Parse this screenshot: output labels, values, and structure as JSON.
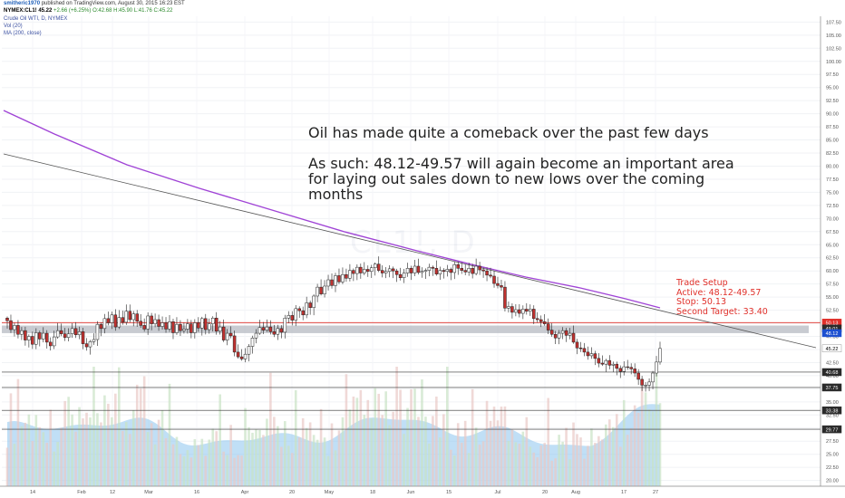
{
  "header": {
    "user": "smitheric1970",
    "published": "published on TradingView.com, August 30, 2015 16:23 EST",
    "symbol": "NYMEX:CL1!",
    "last": "45.22",
    "change": "+2.66 (+6.25%)",
    "o": "O:42.68",
    "h": "H:45.90",
    "l": "L:41.76",
    "c": "C:45.22",
    "indicator_main": "Crude Oil WTI, D, NYMEX",
    "indicator_vol": "Vol (20)",
    "indicator_ma": "MA (200, close)"
  },
  "watermark": "CL1!, D",
  "annotation": {
    "line1": "Oil has made quite a comeback over the past few days",
    "line2": "As such:  48.12-49.57 will again become an important area for laying out sales down to new lows over the coming months"
  },
  "setup": {
    "title": "Trade Setup",
    "active": "Active: 48.12-49.57",
    "stop": "Stop: 50.13",
    "target": "Second Target: 33.40"
  },
  "colors": {
    "up": "#ffffff",
    "down": "#c0312f",
    "ma": "#a044d6",
    "zone": "#b5b9c2",
    "red_line": "#e0302a",
    "volume": "#a7cbe8",
    "volume_area": "#8cc4ee"
  },
  "chart_data": {
    "type": "candlestick",
    "x_tick_labels": [
      "14",
      "Feb",
      "12",
      "Mar",
      "16",
      "Apr",
      "20",
      "May",
      "18",
      "Jun",
      "15",
      "Jul",
      "20",
      "Aug",
      "17",
      "27"
    ],
    "y_tick_labels": [
      "107.50",
      "105.00",
      "102.50",
      "100.00",
      "97.50",
      "95.00",
      "92.50",
      "90.00",
      "87.50",
      "85.00",
      "82.50",
      "80.00",
      "77.50",
      "75.00",
      "72.50",
      "70.00",
      "67.50",
      "65.00",
      "62.50",
      "60.00",
      "57.50",
      "55.00",
      "52.50",
      "50.00",
      "47.50",
      "45.00",
      "42.50",
      "40.00",
      "37.50",
      "35.00",
      "32.50",
      "30.00",
      "27.50",
      "25.00",
      "22.50",
      "20.00"
    ],
    "ylim": [
      18.9,
      108.6
    ],
    "price_markers": [
      {
        "label": "50.13",
        "value": 50.13,
        "color": "#e0302a"
      },
      {
        "label": "49.01",
        "value": 49.01,
        "color": "#2a2a2a"
      },
      {
        "label": "48.12",
        "value": 48.12,
        "color": "#1c4fd0"
      },
      {
        "label": "45.22",
        "value": 45.22,
        "color": "#ffffff"
      },
      {
        "label": "40.68",
        "value": 40.68,
        "color": "#2a2a2a"
      },
      {
        "label": "37.75",
        "value": 37.75,
        "color": "#2a2a2a"
      },
      {
        "label": "33.38",
        "value": 33.38,
        "color": "#2a2a2a"
      },
      {
        "label": "29.77",
        "value": 29.77,
        "color": "#2a2a2a"
      }
    ],
    "resistance_zone": [
      48.12,
      49.57
    ],
    "stop_level": 50.13,
    "horizontal_levels": [
      40.68,
      37.75,
      33.38,
      29.77
    ],
    "closes": [
      50.5,
      48.8,
      49.6,
      47.9,
      48.6,
      46.8,
      47.5,
      46.0,
      48.2,
      47.0,
      48.1,
      46.4,
      45.7,
      47.4,
      48.6,
      48.0,
      47.3,
      48.0,
      49.0,
      47.8,
      48.4,
      46.1,
      45.5,
      46.5,
      46.9,
      49.8,
      49.0,
      50.9,
      50.1,
      51.6,
      49.3,
      51.1,
      50.2,
      52.3,
      50.7,
      51.8,
      50.4,
      49.6,
      48.9,
      51.4,
      49.9,
      50.7,
      49.4,
      50.1,
      48.9,
      50.3,
      48.2,
      49.8,
      48.6,
      48.9,
      49.9,
      48.2,
      50.1,
      49.1,
      50.9,
      48.8,
      49.9,
      51.0,
      48.5,
      49.3,
      46.8,
      48.1,
      47.6,
      44.5,
      43.6,
      43.2,
      44.1,
      45.6,
      47.2,
      48.1,
      49.2,
      48.7,
      49.3,
      48.4,
      47.9,
      49.0,
      48.3,
      51.0,
      51.5,
      50.6,
      52.8,
      52.4,
      51.6,
      53.9,
      53.0,
      55.2,
      56.9,
      55.6,
      57.1,
      58.3,
      57.2,
      59.1,
      57.9,
      59.3,
      58.6,
      60.1,
      59.5,
      60.7,
      59.6,
      60.3,
      59.9,
      60.6,
      61.3,
      60.1,
      59.6,
      59.9,
      60.4,
      60.0,
      59.3,
      58.7,
      59.6,
      60.5,
      59.6,
      60.9,
      59.7,
      59.9,
      60.1,
      60.7,
      60.5,
      59.4,
      60.1,
      59.9,
      60.3,
      59.7,
      61.2,
      60.5,
      60.1,
      59.8,
      60.5,
      59.5,
      60.9,
      60.2,
      60.0,
      59.2,
      59.0,
      57.6,
      57.2,
      56.9,
      52.9,
      53.2,
      52.1,
      52.6,
      51.9,
      52.7,
      52.3,
      52.7,
      50.9,
      50.7,
      50.3,
      49.9,
      48.7,
      47.9,
      47.2,
      48.1,
      48.6,
      47.7,
      48.1,
      46.4,
      45.3,
      45.2,
      44.5,
      43.8,
      44.2,
      43.3,
      42.4,
      42.2,
      42.9,
      42.0,
      42.2,
      41.4,
      40.8,
      41.7,
      41.6,
      41.3,
      40.5,
      39.3,
      38.2,
      38.2,
      38.8,
      40.5,
      42.6,
      45.2
    ],
    "volume_series": "blue bars with highlighted volume bars over the trading period"
  }
}
